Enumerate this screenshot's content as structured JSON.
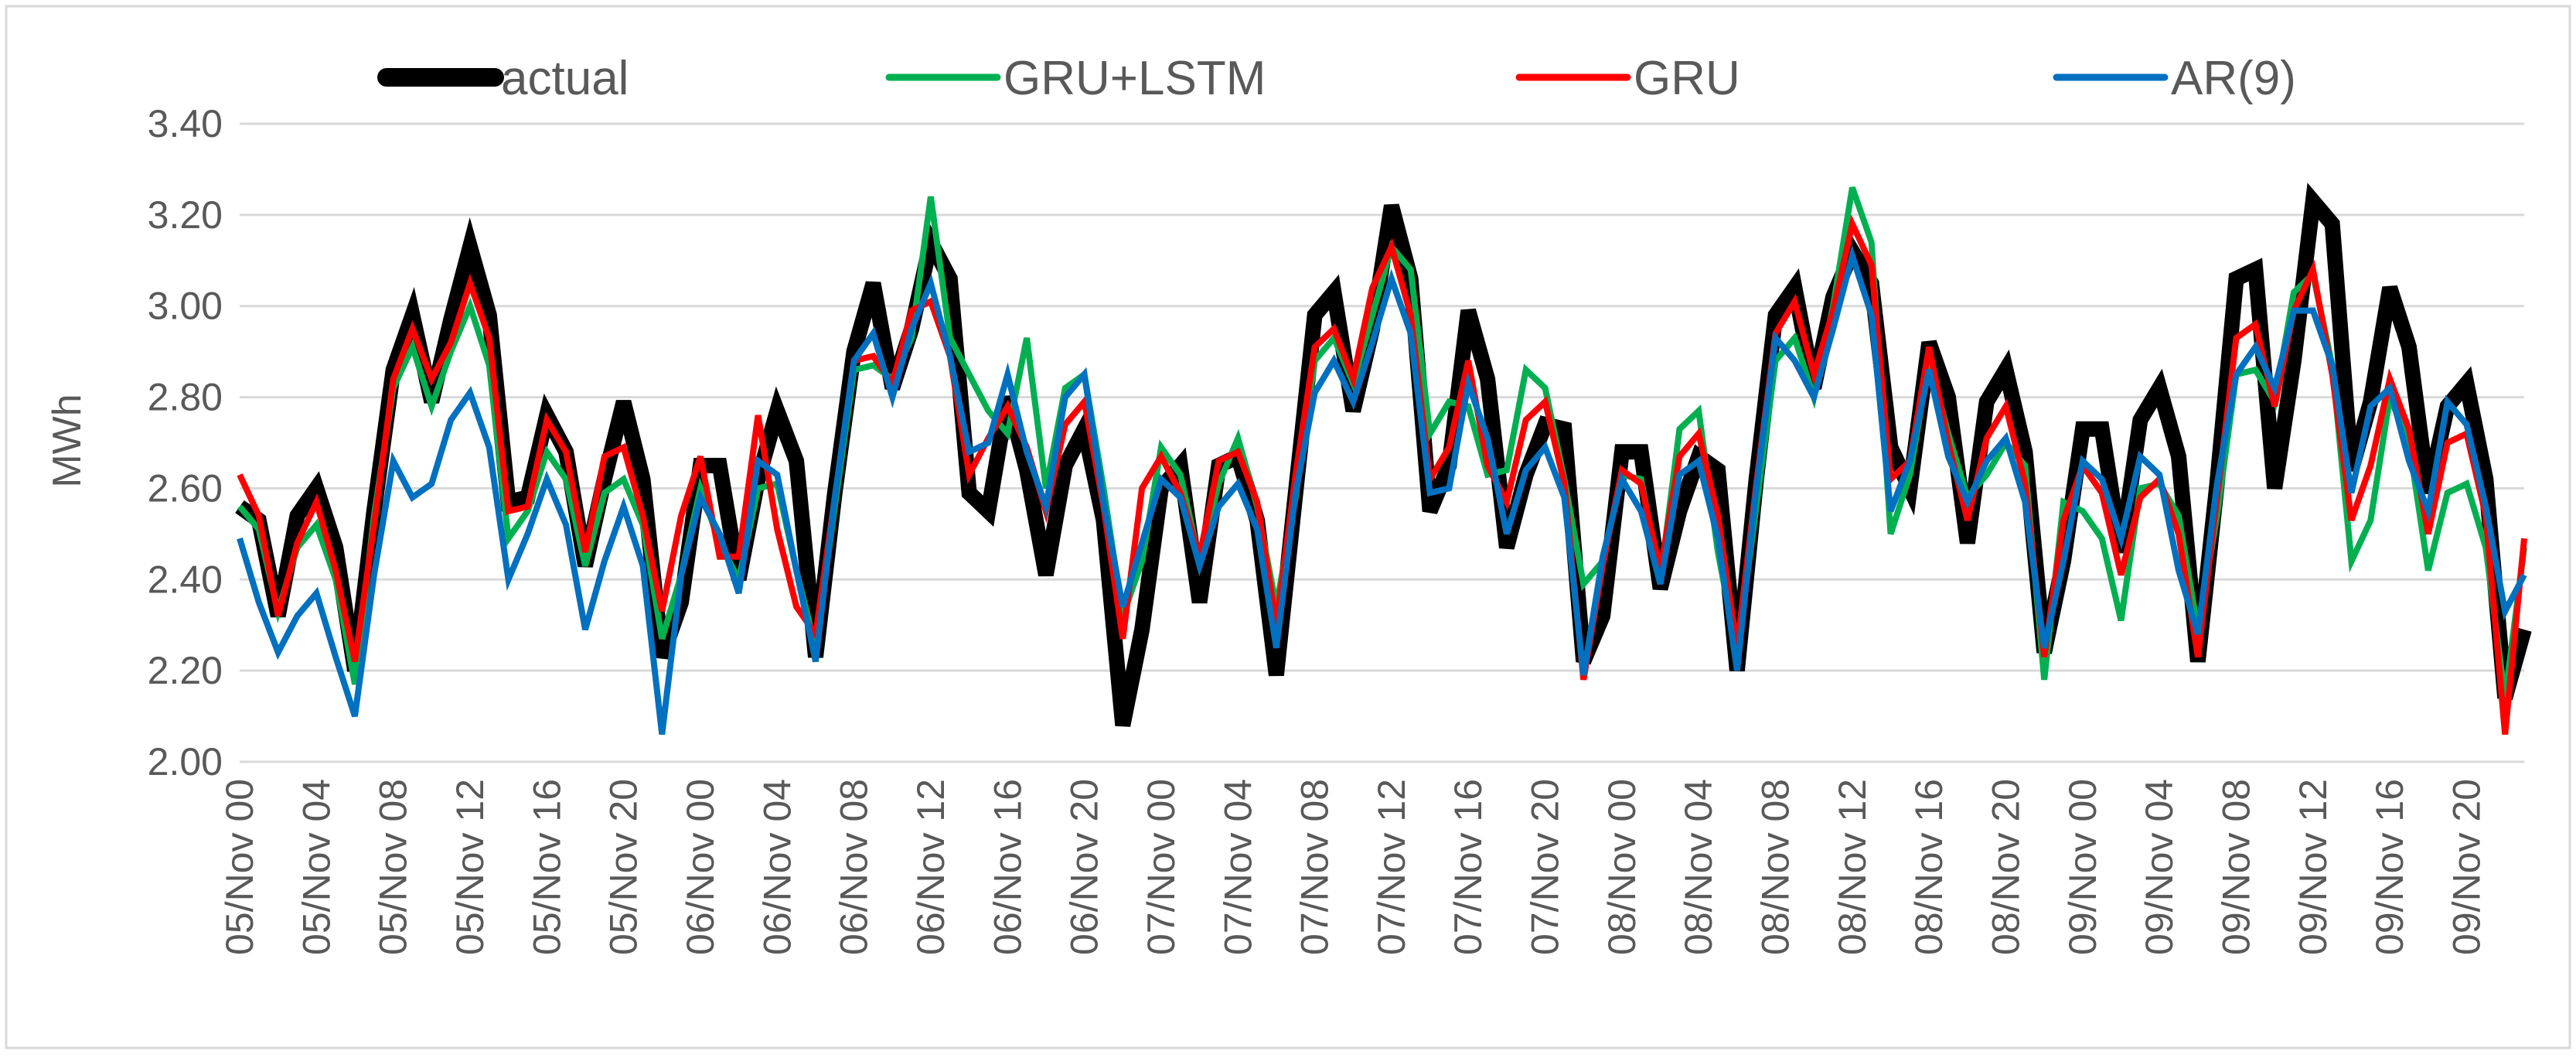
{
  "chart_data": {
    "type": "line",
    "title": "",
    "xlabel": "",
    "ylabel": "MWh",
    "ylim": [
      2.0,
      3.4
    ],
    "yticks": [
      "2.00",
      "2.20",
      "2.40",
      "2.60",
      "2.80",
      "3.00",
      "3.20",
      "3.40"
    ],
    "ytick_values": [
      2.0,
      2.2,
      2.4,
      2.6,
      2.8,
      3.0,
      3.2,
      3.4
    ],
    "grid": true,
    "legend_position": "top",
    "x_tick_labels": [
      "05/Nov 00",
      "05/Nov 04",
      "05/Nov 08",
      "05/Nov 12",
      "05/Nov 16",
      "05/Nov 20",
      "06/Nov 00",
      "06/Nov 04",
      "06/Nov 08",
      "06/Nov 12",
      "06/Nov 16",
      "06/Nov 20",
      "07/Nov 00",
      "07/Nov 04",
      "07/Nov 08",
      "07/Nov 12",
      "07/Nov 16",
      "07/Nov 20",
      "08/Nov 00",
      "08/Nov 04",
      "08/Nov 08",
      "08/Nov 12",
      "08/Nov 16",
      "08/Nov 20",
      "09/Nov 00",
      "09/Nov 04",
      "09/Nov 08",
      "09/Nov 12",
      "09/Nov 16",
      "09/Nov 20"
    ],
    "x_hours": [
      0,
      1,
      2,
      3,
      4,
      5,
      6,
      7,
      8,
      9,
      10,
      11,
      12,
      13,
      14,
      15,
      16,
      17,
      18,
      19,
      20,
      21,
      22,
      23,
      24,
      25,
      26,
      27,
      28,
      29,
      30,
      31,
      32,
      33,
      34,
      35,
      36,
      37,
      38,
      39,
      40,
      41,
      42,
      43,
      44,
      45,
      46,
      47,
      48,
      49,
      50,
      51,
      52,
      53,
      54,
      55,
      56,
      57,
      58,
      59,
      60,
      61,
      62,
      63,
      64,
      65,
      66,
      67,
      68,
      69,
      70,
      71,
      72,
      73,
      74,
      75,
      76,
      77,
      78,
      79,
      80,
      81,
      82,
      83,
      84,
      85,
      86,
      87,
      88,
      89,
      90,
      91,
      92,
      93,
      94,
      95,
      96,
      97,
      98,
      99,
      100,
      101,
      102,
      103,
      104,
      105,
      106,
      107,
      108,
      109,
      110,
      111,
      112,
      113,
      114,
      115,
      116,
      117,
      118,
      119
    ],
    "series": [
      {
        "name": "actual",
        "color": "#000000",
        "values": [
          2.56,
          2.53,
          2.32,
          2.54,
          2.6,
          2.47,
          2.2,
          2.55,
          2.86,
          2.98,
          2.79,
          2.97,
          3.13,
          2.98,
          2.57,
          2.58,
          2.76,
          2.68,
          2.43,
          2.62,
          2.79,
          2.62,
          2.23,
          2.35,
          2.65,
          2.65,
          2.4,
          2.62,
          2.77,
          2.66,
          2.23,
          2.59,
          2.9,
          3.05,
          2.82,
          2.95,
          3.14,
          3.06,
          2.59,
          2.55,
          2.8,
          2.64,
          2.41,
          2.65,
          2.73,
          2.53,
          2.08,
          2.29,
          2.6,
          2.65,
          2.35,
          2.65,
          2.67,
          2.53,
          2.19,
          2.59,
          2.98,
          3.03,
          2.77,
          2.95,
          3.22,
          3.06,
          2.55,
          2.65,
          2.99,
          2.84,
          2.47,
          2.63,
          2.74,
          2.73,
          2.22,
          2.32,
          2.68,
          2.68,
          2.38,
          2.55,
          2.67,
          2.64,
          2.2,
          2.62,
          2.98,
          3.04,
          2.82,
          3.02,
          3.12,
          3.05,
          2.69,
          2.6,
          2.92,
          2.8,
          2.48,
          2.79,
          2.86,
          2.68,
          2.24,
          2.44,
          2.73,
          2.73,
          2.46,
          2.75,
          2.82,
          2.67,
          2.22,
          2.61,
          3.06,
          3.08,
          2.6,
          2.88,
          3.23,
          3.18,
          2.64,
          2.79,
          3.04,
          2.91,
          2.59,
          2.78,
          2.83,
          2.62,
          2.14,
          2.29
        ]
      },
      {
        "name": "GRU+LSTM",
        "color": "#00B050",
        "values": [
          2.56,
          2.51,
          2.33,
          2.47,
          2.52,
          2.4,
          2.17,
          2.54,
          2.82,
          2.91,
          2.78,
          2.9,
          3.0,
          2.87,
          2.49,
          2.55,
          2.68,
          2.62,
          2.43,
          2.59,
          2.62,
          2.52,
          2.27,
          2.41,
          2.6,
          2.48,
          2.4,
          2.6,
          2.61,
          2.42,
          2.25,
          2.56,
          2.86,
          2.87,
          2.84,
          2.93,
          3.24,
          2.93,
          2.85,
          2.77,
          2.72,
          2.93,
          2.6,
          2.82,
          2.85,
          2.6,
          2.32,
          2.44,
          2.69,
          2.63,
          2.44,
          2.61,
          2.71,
          2.56,
          2.34,
          2.58,
          2.88,
          2.93,
          2.83,
          2.98,
          3.13,
          3.08,
          2.72,
          2.79,
          2.78,
          2.63,
          2.64,
          2.86,
          2.82,
          2.62,
          2.39,
          2.44,
          2.63,
          2.62,
          2.4,
          2.73,
          2.77,
          2.46,
          2.24,
          2.56,
          2.88,
          2.93,
          2.8,
          3.0,
          3.26,
          3.14,
          2.5,
          2.63,
          2.88,
          2.72,
          2.58,
          2.63,
          2.7,
          2.65,
          2.18,
          2.57,
          2.55,
          2.49,
          2.31,
          2.6,
          2.61,
          2.54,
          2.29,
          2.54,
          2.85,
          2.86,
          2.79,
          3.03,
          3.07,
          2.87,
          2.44,
          2.53,
          2.8,
          2.7,
          2.42,
          2.59,
          2.61,
          2.47,
          2.14,
          2.47
        ]
      },
      {
        "name": "GRU",
        "color": "#FF0000",
        "values": [
          2.63,
          2.54,
          2.32,
          2.48,
          2.57,
          2.42,
          2.22,
          2.52,
          2.84,
          2.95,
          2.84,
          2.92,
          3.05,
          2.93,
          2.55,
          2.56,
          2.75,
          2.68,
          2.46,
          2.67,
          2.69,
          2.54,
          2.33,
          2.54,
          2.67,
          2.45,
          2.45,
          2.76,
          2.51,
          2.34,
          2.28,
          2.58,
          2.88,
          2.89,
          2.83,
          2.99,
          3.01,
          2.89,
          2.63,
          2.71,
          2.78,
          2.69,
          2.55,
          2.74,
          2.79,
          2.56,
          2.27,
          2.6,
          2.67,
          2.59,
          2.45,
          2.66,
          2.68,
          2.57,
          2.3,
          2.63,
          2.91,
          2.95,
          2.84,
          3.04,
          3.13,
          2.98,
          2.62,
          2.69,
          2.88,
          2.65,
          2.57,
          2.75,
          2.79,
          2.61,
          2.18,
          2.43,
          2.64,
          2.61,
          2.42,
          2.67,
          2.72,
          2.54,
          2.25,
          2.61,
          2.94,
          3.01,
          2.85,
          2.99,
          3.18,
          3.09,
          2.62,
          2.66,
          2.91,
          2.7,
          2.53,
          2.71,
          2.78,
          2.61,
          2.23,
          2.53,
          2.65,
          2.59,
          2.41,
          2.58,
          2.62,
          2.5,
          2.23,
          2.58,
          2.93,
          2.96,
          2.78,
          2.99,
          3.08,
          2.85,
          2.53,
          2.65,
          2.84,
          2.73,
          2.5,
          2.7,
          2.72,
          2.54,
          2.06,
          2.49
        ]
      },
      {
        "name": "AR(9)",
        "color": "#0070C0",
        "values": [
          2.49,
          2.35,
          2.24,
          2.32,
          2.37,
          2.23,
          2.1,
          2.41,
          2.66,
          2.58,
          2.61,
          2.75,
          2.81,
          2.69,
          2.4,
          2.5,
          2.62,
          2.52,
          2.29,
          2.44,
          2.56,
          2.43,
          2.06,
          2.41,
          2.58,
          2.5,
          2.37,
          2.66,
          2.63,
          2.42,
          2.22,
          2.58,
          2.88,
          2.94,
          2.8,
          2.95,
          3.05,
          2.89,
          2.68,
          2.7,
          2.85,
          2.68,
          2.56,
          2.8,
          2.85,
          2.57,
          2.34,
          2.48,
          2.62,
          2.58,
          2.43,
          2.56,
          2.61,
          2.51,
          2.25,
          2.59,
          2.81,
          2.88,
          2.79,
          2.92,
          3.06,
          2.94,
          2.59,
          2.6,
          2.83,
          2.71,
          2.5,
          2.64,
          2.69,
          2.58,
          2.19,
          2.45,
          2.62,
          2.55,
          2.39,
          2.63,
          2.66,
          2.49,
          2.2,
          2.6,
          2.93,
          2.88,
          2.8,
          2.95,
          3.11,
          2.98,
          2.55,
          2.66,
          2.86,
          2.67,
          2.57,
          2.66,
          2.71,
          2.57,
          2.25,
          2.44,
          2.66,
          2.62,
          2.49,
          2.67,
          2.63,
          2.42,
          2.28,
          2.61,
          2.85,
          2.91,
          2.82,
          2.99,
          2.99,
          2.87,
          2.59,
          2.78,
          2.82,
          2.66,
          2.55,
          2.79,
          2.74,
          2.56,
          2.33,
          2.41
        ]
      }
    ]
  }
}
